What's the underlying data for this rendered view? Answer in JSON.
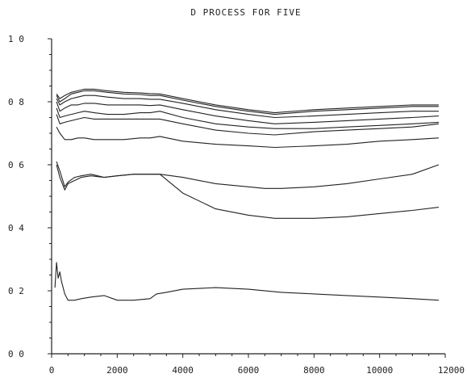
{
  "chart_data": {
    "type": "line",
    "title": "D PROCESS FOR FIVE",
    "xlabel": "",
    "ylabel": "",
    "xlim": [
      0,
      12000
    ],
    "ylim": [
      0.0,
      1.0
    ],
    "x_ticks": [
      0,
      2000,
      4000,
      6000,
      8000,
      10000,
      12000
    ],
    "x_tick_labels": [
      "0",
      "2000",
      "4000",
      "6000",
      "8000",
      "10000",
      "12000"
    ],
    "y_ticks": [
      0.0,
      0.2,
      0.4,
      0.6,
      0.8,
      1.0
    ],
    "y_tick_labels": [
      "0 0",
      "0 2",
      "0 4",
      "0 6",
      "0 8",
      "1 0"
    ],
    "grid": false,
    "legend": "none",
    "line_color": "#222222",
    "series": [
      {
        "x": [
          150,
          250,
          400,
          600,
          800,
          1000,
          1300,
          1700,
          2200,
          2700,
          3000,
          3300,
          4000,
          5000,
          6000,
          6800,
          8000,
          9000,
          10000,
          11000,
          11800
        ],
        "y": [
          0.825,
          0.81,
          0.82,
          0.83,
          0.835,
          0.84,
          0.84,
          0.835,
          0.83,
          0.828,
          0.826,
          0.825,
          0.81,
          0.79,
          0.775,
          0.765,
          0.775,
          0.78,
          0.785,
          0.79,
          0.79
        ]
      },
      {
        "x": [
          150,
          250,
          400,
          600,
          800,
          1000,
          1300,
          1700,
          2200,
          2700,
          3000,
          3300,
          4000,
          5000,
          6000,
          6800,
          8000,
          9000,
          10000,
          11000,
          11800
        ],
        "y": [
          0.82,
          0.8,
          0.81,
          0.825,
          0.83,
          0.835,
          0.835,
          0.83,
          0.825,
          0.823,
          0.82,
          0.82,
          0.805,
          0.785,
          0.77,
          0.76,
          0.77,
          0.775,
          0.78,
          0.785,
          0.785
        ]
      },
      {
        "x": [
          150,
          250,
          400,
          600,
          800,
          1000,
          1300,
          1700,
          2200,
          2700,
          3000,
          3300,
          4000,
          5000,
          6000,
          6800,
          8000,
          9000,
          10000,
          11000,
          11800
        ],
        "y": [
          0.81,
          0.79,
          0.8,
          0.81,
          0.815,
          0.82,
          0.82,
          0.815,
          0.81,
          0.81,
          0.808,
          0.808,
          0.795,
          0.775,
          0.76,
          0.75,
          0.755,
          0.76,
          0.765,
          0.77,
          0.77
        ]
      },
      {
        "x": [
          150,
          250,
          400,
          600,
          800,
          1000,
          1300,
          1700,
          2200,
          2700,
          3000,
          3300,
          4000,
          5000,
          6000,
          6800,
          8000,
          9000,
          10000,
          11000,
          11800
        ],
        "y": [
          0.8,
          0.77,
          0.78,
          0.79,
          0.79,
          0.795,
          0.795,
          0.79,
          0.79,
          0.79,
          0.788,
          0.79,
          0.775,
          0.755,
          0.74,
          0.73,
          0.735,
          0.74,
          0.745,
          0.75,
          0.755
        ]
      },
      {
        "x": [
          150,
          250,
          400,
          600,
          800,
          1000,
          1300,
          1700,
          2200,
          2700,
          3000,
          3300,
          4000,
          5000,
          6000,
          6800,
          8000,
          9000,
          10000,
          11000,
          11800
        ],
        "y": [
          0.78,
          0.75,
          0.755,
          0.76,
          0.765,
          0.77,
          0.765,
          0.76,
          0.76,
          0.765,
          0.765,
          0.77,
          0.75,
          0.73,
          0.72,
          0.715,
          0.715,
          0.72,
          0.725,
          0.73,
          0.735
        ]
      },
      {
        "x": [
          150,
          250,
          400,
          600,
          800,
          1000,
          1300,
          1700,
          2200,
          2700,
          3000,
          3300,
          4000,
          5000,
          6000,
          6800,
          8000,
          9000,
          10000,
          11000,
          11800
        ],
        "y": [
          0.76,
          0.73,
          0.735,
          0.74,
          0.745,
          0.75,
          0.745,
          0.745,
          0.745,
          0.745,
          0.745,
          0.745,
          0.73,
          0.71,
          0.7,
          0.695,
          0.705,
          0.71,
          0.715,
          0.72,
          0.73
        ]
      },
      {
        "x": [
          150,
          250,
          400,
          600,
          800,
          1000,
          1300,
          1700,
          2200,
          2700,
          3000,
          3300,
          4000,
          5000,
          6000,
          6800,
          8000,
          9000,
          10000,
          11000,
          11800
        ],
        "y": [
          0.72,
          0.7,
          0.68,
          0.68,
          0.685,
          0.685,
          0.68,
          0.68,
          0.68,
          0.685,
          0.685,
          0.69,
          0.675,
          0.665,
          0.66,
          0.655,
          0.66,
          0.665,
          0.675,
          0.68,
          0.685
        ]
      },
      {
        "x": [
          150,
          250,
          400,
          500,
          700,
          900,
          1200,
          1600,
          2000,
          2500,
          3000,
          3300,
          4000,
          5000,
          6000,
          6500,
          7000,
          8000,
          9000,
          10000,
          11000,
          11800
        ],
        "y": [
          0.61,
          0.58,
          0.53,
          0.545,
          0.56,
          0.565,
          0.57,
          0.56,
          0.565,
          0.57,
          0.57,
          0.57,
          0.56,
          0.54,
          0.53,
          0.525,
          0.525,
          0.53,
          0.54,
          0.555,
          0.57,
          0.6
        ]
      },
      {
        "x": [
          150,
          250,
          400,
          500,
          700,
          900,
          1200,
          1600,
          2000,
          2500,
          3000,
          3300,
          4000,
          5000,
          6000,
          6800,
          7000,
          8000,
          9000,
          10000,
          11000,
          11800
        ],
        "y": [
          0.6,
          0.56,
          0.52,
          0.54,
          0.55,
          0.56,
          0.565,
          0.56,
          0.565,
          0.57,
          0.57,
          0.57,
          0.51,
          0.46,
          0.44,
          0.43,
          0.43,
          0.43,
          0.435,
          0.445,
          0.455,
          0.465
        ]
      },
      {
        "x": [
          100,
          150,
          200,
          250,
          300,
          400,
          500,
          700,
          900,
          1200,
          1600,
          2000,
          2500,
          3000,
          3200,
          3500,
          4000,
          5000,
          6000,
          7000,
          8000,
          9000,
          10000,
          11000,
          11800
        ],
        "y": [
          0.21,
          0.29,
          0.24,
          0.26,
          0.23,
          0.19,
          0.17,
          0.17,
          0.175,
          0.18,
          0.185,
          0.17,
          0.17,
          0.175,
          0.19,
          0.195,
          0.205,
          0.21,
          0.205,
          0.195,
          0.19,
          0.185,
          0.18,
          0.175,
          0.17
        ]
      }
    ]
  }
}
